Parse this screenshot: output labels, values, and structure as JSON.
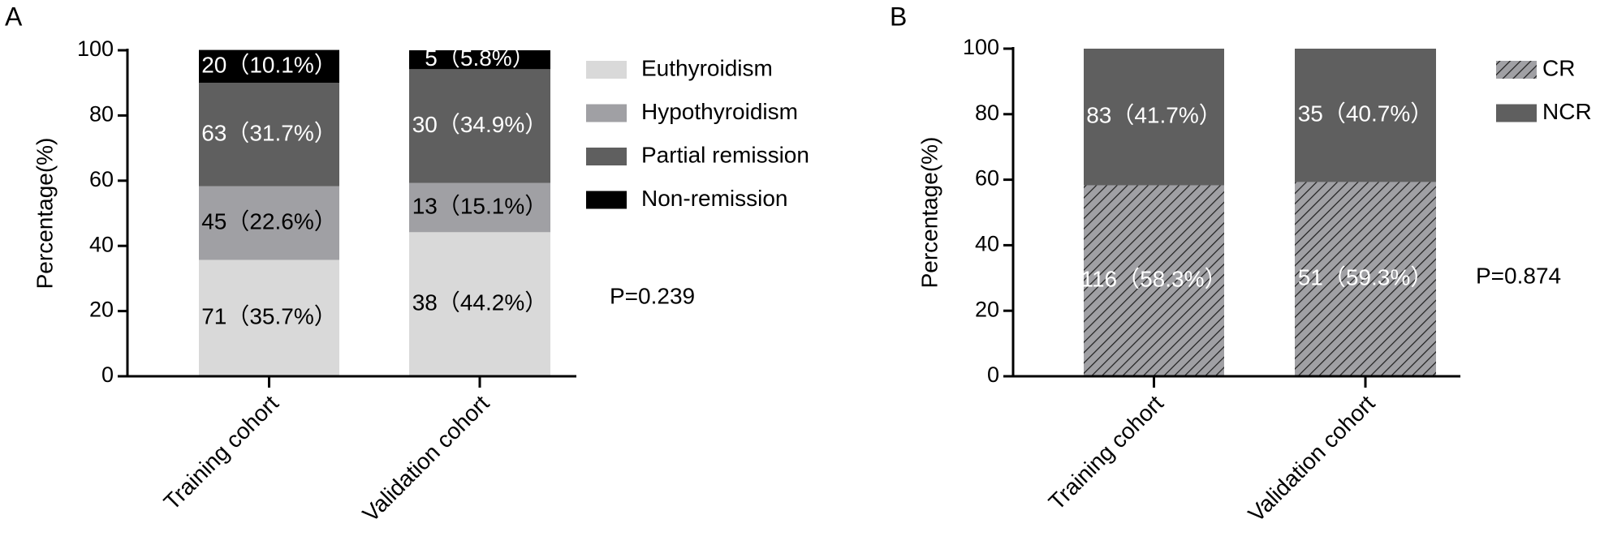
{
  "chart_data": [
    {
      "type": "bar",
      "stacked": true,
      "panel_label": "A",
      "ylabel": "Percentage(%)",
      "annotation": "P=0.239",
      "categories": [
        "Training cohort",
        "Validation cohort"
      ],
      "series": [
        {
          "name": "Euthyroidism",
          "color": "#d9d9d9",
          "values": [
            35.7,
            44.2
          ],
          "value_labels": [
            "71（35.7%）",
            "38（44.2%）"
          ]
        },
        {
          "name": "Hypothyroidism",
          "color": "#a0a0a4",
          "values": [
            22.6,
            15.1
          ],
          "value_labels": [
            "45（22.6%）",
            "13（15.1%）"
          ]
        },
        {
          "name": "Partial remission",
          "color": "#5f5f5f",
          "values": [
            31.7,
            34.9
          ],
          "value_labels": [
            "63（31.7%）",
            "30（34.9%）"
          ]
        },
        {
          "name": "Non-remission",
          "color": "#000000",
          "values": [
            10.1,
            5.8
          ],
          "value_labels": [
            "20（10.1%）",
            "5（5.8%）"
          ]
        }
      ],
      "ylim": [
        0,
        100
      ],
      "yticks": [
        0,
        20,
        40,
        60,
        80,
        100
      ],
      "legend": "right"
    },
    {
      "type": "bar",
      "stacked": true,
      "panel_label": "B",
      "ylabel": "Percentage(%)",
      "annotation": "P=0.874",
      "categories": [
        "Training cohort",
        "Validation cohort"
      ],
      "series": [
        {
          "name": "CR",
          "color": "#a0a0a4",
          "hatch": true,
          "values": [
            58.3,
            59.3
          ],
          "value_labels": [
            "116（58.3%）",
            "51（59.3%）"
          ]
        },
        {
          "name": "NCR",
          "color": "#5f5f5f",
          "values": [
            41.7,
            40.7
          ],
          "value_labels": [
            "83（41.7%）",
            "35（40.7%）"
          ]
        }
      ],
      "ylim": [
        0,
        100
      ],
      "yticks": [
        0,
        20,
        40,
        60,
        80,
        100
      ],
      "legend": "right"
    }
  ]
}
